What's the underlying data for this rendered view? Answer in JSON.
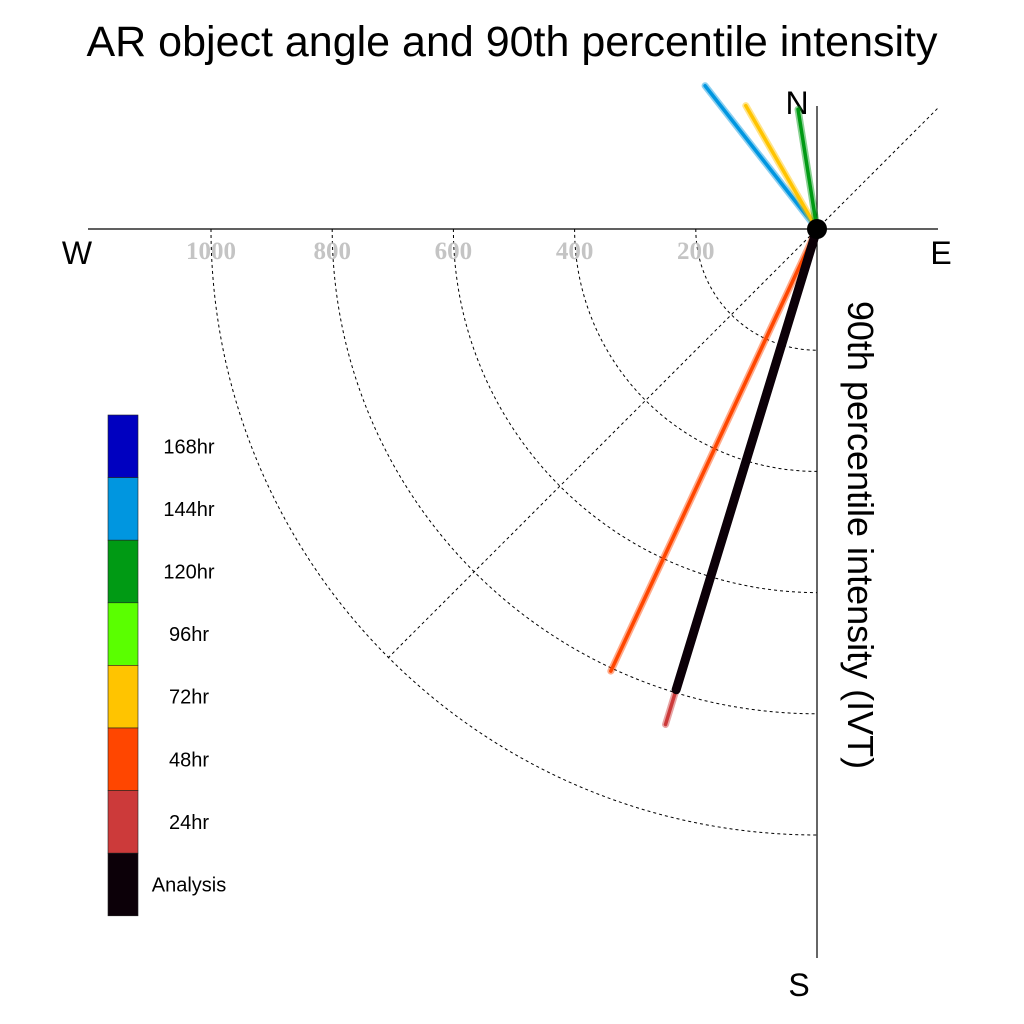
{
  "chart_data": {
    "type": "polar-vector",
    "title": "AR object angle and 90th percentile intensity",
    "ylabel": "90th percentile intensity (IVT)",
    "compass": {
      "north": "N",
      "south": "S",
      "east": "E",
      "west": "W"
    },
    "radial_ticks": [
      "200",
      "400",
      "600",
      "800",
      "1000"
    ],
    "radial_tick_values": [
      200,
      400,
      600,
      800,
      1000
    ],
    "radial_range": [
      0,
      1200
    ],
    "grid": true,
    "legend_position": "left",
    "legend": [
      {
        "label": "168hr",
        "color": "#0000c0"
      },
      {
        "label": "144hr",
        "color": "#0096e0"
      },
      {
        "label": "120hr",
        "color": "#009a14"
      },
      {
        "label": "96hr",
        "color": "#5aff00"
      },
      {
        "label": "72hr",
        "color": "#ffc400"
      },
      {
        "label": "48hr",
        "color": "#ff4600"
      },
      {
        "label": "24hr",
        "color": "#cc3a3a"
      },
      {
        "label": "Analysis",
        "color": "#0c0008"
      }
    ],
    "series": [
      {
        "name": "144hr",
        "angle_deg": 322,
        "intensity": 300,
        "color": "#0096e0"
      },
      {
        "name": "72hr",
        "angle_deg": 330,
        "intensity": 235,
        "color": "#ffc400"
      },
      {
        "name": "120hr",
        "angle_deg": 351,
        "intensity": 200,
        "color": "#009a14"
      },
      {
        "name": "48hr",
        "angle_deg": 205,
        "intensity": 805,
        "color": "#ff4600"
      },
      {
        "name": "24hr",
        "angle_deg": 197,
        "intensity": 855,
        "color": "#cc3a3a"
      },
      {
        "name": "Analysis",
        "angle_deg": 197,
        "intensity": 795,
        "color": "#0c0008"
      }
    ]
  }
}
